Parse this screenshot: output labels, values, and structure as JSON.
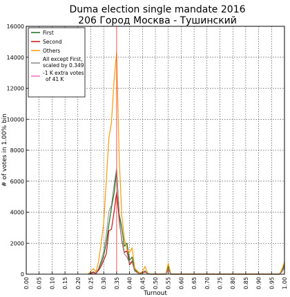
{
  "chart_data": {
    "type": "line",
    "title_line1": "Duma election single mandate 2016",
    "title_line2": "206 Город Москва - Тушинский",
    "xlabel": "Turnout",
    "ylabel": "# of votes in 1.00% bin",
    "xlim": [
      0,
      1
    ],
    "ylim": [
      0,
      16000
    ],
    "grid": true,
    "xticks": [
      "0.00",
      "0.05",
      "0.10",
      "0.15",
      "0.20",
      "0.25",
      "0.30",
      "0.35",
      "0.40",
      "0.45",
      "0.50",
      "0.55",
      "0.60",
      "0.65",
      "0.70",
      "0.75",
      "0.80",
      "0.85",
      "0.90",
      "0.95",
      "1.00"
    ],
    "yticks": [
      0,
      2000,
      4000,
      6000,
      8000,
      10000,
      12000,
      14000,
      16000
    ],
    "legend_position": "top-left",
    "vline": {
      "x": 0.35,
      "color": "#ff4040"
    },
    "series": [
      {
        "name": "First",
        "color": "#1a6e1a",
        "width": 1.2,
        "points": [
          [
            0.24,
            0
          ],
          [
            0.25,
            80
          ],
          [
            0.26,
            150
          ],
          [
            0.27,
            60
          ],
          [
            0.28,
            300
          ],
          [
            0.29,
            700
          ],
          [
            0.3,
            1200
          ],
          [
            0.31,
            2000
          ],
          [
            0.32,
            3200
          ],
          [
            0.33,
            4300
          ],
          [
            0.34,
            5200
          ],
          [
            0.35,
            6700
          ],
          [
            0.36,
            3900
          ],
          [
            0.37,
            3000
          ],
          [
            0.38,
            1800
          ],
          [
            0.39,
            2000
          ],
          [
            0.4,
            900
          ],
          [
            0.41,
            1100
          ],
          [
            0.42,
            300
          ],
          [
            0.43,
            150
          ],
          [
            0.44,
            50
          ],
          [
            0.45,
            100
          ],
          [
            0.46,
            200
          ],
          [
            0.47,
            50
          ],
          [
            0.48,
            0
          ],
          [
            0.54,
            0
          ],
          [
            0.55,
            500
          ],
          [
            0.56,
            0
          ],
          [
            0.98,
            0
          ],
          [
            0.99,
            200
          ],
          [
            1.0,
            650
          ]
        ]
      },
      {
        "name": "Second",
        "color": "#cc1111",
        "width": 1.2,
        "points": [
          [
            0.24,
            0
          ],
          [
            0.25,
            50
          ],
          [
            0.26,
            100
          ],
          [
            0.27,
            40
          ],
          [
            0.28,
            250
          ],
          [
            0.29,
            500
          ],
          [
            0.3,
            900
          ],
          [
            0.31,
            1300
          ],
          [
            0.32,
            2800
          ],
          [
            0.33,
            2900
          ],
          [
            0.34,
            4000
          ],
          [
            0.35,
            5300
          ],
          [
            0.36,
            3500
          ],
          [
            0.37,
            2200
          ],
          [
            0.38,
            1400
          ],
          [
            0.39,
            1500
          ],
          [
            0.4,
            600
          ],
          [
            0.41,
            800
          ],
          [
            0.42,
            200
          ],
          [
            0.43,
            100
          ],
          [
            0.44,
            30
          ],
          [
            0.45,
            80
          ],
          [
            0.46,
            150
          ],
          [
            0.47,
            40
          ],
          [
            0.48,
            0
          ],
          [
            0.54,
            0
          ],
          [
            0.55,
            300
          ],
          [
            0.56,
            0
          ],
          [
            0.98,
            0
          ],
          [
            0.99,
            150
          ],
          [
            1.0,
            450
          ]
        ]
      },
      {
        "name": "Others",
        "color": "#ff9900",
        "width": 1.2,
        "points": [
          [
            0.24,
            0
          ],
          [
            0.25,
            200
          ],
          [
            0.26,
            350
          ],
          [
            0.27,
            150
          ],
          [
            0.28,
            800
          ],
          [
            0.29,
            2000
          ],
          [
            0.3,
            3300
          ],
          [
            0.31,
            6000
          ],
          [
            0.32,
            8800
          ],
          [
            0.33,
            9800
          ],
          [
            0.34,
            12500
          ],
          [
            0.35,
            14300
          ],
          [
            0.36,
            7500
          ],
          [
            0.37,
            3800
          ],
          [
            0.38,
            2300
          ],
          [
            0.39,
            1600
          ],
          [
            0.4,
            1400
          ],
          [
            0.41,
            1700
          ],
          [
            0.42,
            400
          ],
          [
            0.43,
            200
          ],
          [
            0.44,
            80
          ],
          [
            0.45,
            150
          ],
          [
            0.46,
            500
          ],
          [
            0.47,
            80
          ],
          [
            0.48,
            0
          ],
          [
            0.54,
            0
          ],
          [
            0.55,
            700
          ],
          [
            0.56,
            0
          ],
          [
            0.98,
            0
          ],
          [
            0.99,
            300
          ],
          [
            1.0,
            800
          ]
        ]
      },
      {
        "name": "All except First, scaled by 0.349",
        "color": "#888888",
        "width": 1.0,
        "points": [
          [
            0.24,
            0
          ],
          [
            0.25,
            90
          ],
          [
            0.26,
            160
          ],
          [
            0.27,
            70
          ],
          [
            0.28,
            370
          ],
          [
            0.29,
            870
          ],
          [
            0.3,
            1470
          ],
          [
            0.31,
            2550
          ],
          [
            0.32,
            4050
          ],
          [
            0.33,
            4450
          ],
          [
            0.34,
            5750
          ],
          [
            0.35,
            6850
          ],
          [
            0.36,
            3850
          ],
          [
            0.37,
            2100
          ],
          [
            0.38,
            1300
          ],
          [
            0.39,
            1100
          ],
          [
            0.4,
            700
          ],
          [
            0.41,
            870
          ],
          [
            0.42,
            210
          ],
          [
            0.43,
            110
          ],
          [
            0.44,
            40
          ],
          [
            0.45,
            80
          ],
          [
            0.46,
            230
          ],
          [
            0.47,
            40
          ],
          [
            0.48,
            0
          ],
          [
            0.54,
            0
          ],
          [
            0.55,
            350
          ],
          [
            0.56,
            0
          ],
          [
            0.98,
            0
          ],
          [
            0.99,
            160
          ],
          [
            1.0,
            430
          ]
        ]
      }
    ],
    "legend_extra": {
      "label_line1": "-1 K extra votes",
      "label_line2": "of 41 K",
      "color": "#ff66cc"
    },
    "legend_labels": {
      "first": "First",
      "second": "Second",
      "others": "Others",
      "scaled_line1": "All except First,",
      "scaled_line2": "scaled by 0.349"
    }
  }
}
